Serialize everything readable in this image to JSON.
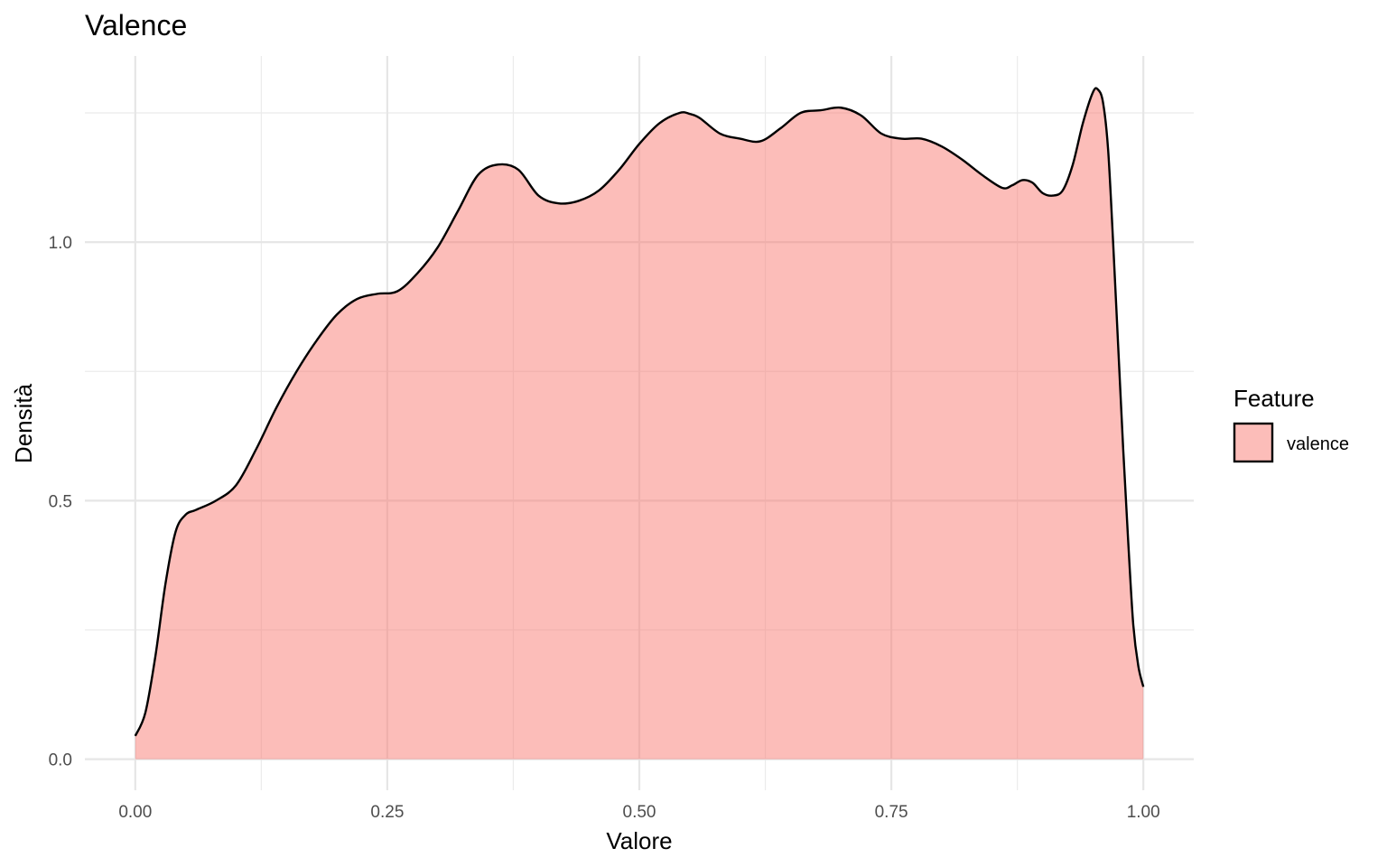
{
  "chart_data": {
    "type": "area",
    "title": "Valence",
    "xlabel": "Valore",
    "ylabel": "Densità",
    "xlim": [
      -0.05,
      1.05
    ],
    "ylim": [
      -0.06,
      1.36
    ],
    "x_ticks": [
      0.0,
      0.25,
      0.5,
      0.75,
      1.0
    ],
    "x_tick_labels": [
      "0.00",
      "0.25",
      "0.50",
      "0.75",
      "1.00"
    ],
    "y_ticks": [
      0.0,
      0.5,
      1.0
    ],
    "y_tick_labels": [
      "0.0",
      "0.5",
      "1.0"
    ],
    "grid": true,
    "legend": {
      "title": "Feature",
      "position": "right",
      "entries": [
        {
          "label": "valence",
          "color": "#f8766d"
        }
      ]
    },
    "series": [
      {
        "name": "valence",
        "fill_color": "#f8766d",
        "fill_opacity": 0.48,
        "line_color": "#000000",
        "x": [
          0.0,
          0.01,
          0.02,
          0.03,
          0.04,
          0.05,
          0.06,
          0.08,
          0.1,
          0.12,
          0.14,
          0.16,
          0.18,
          0.2,
          0.22,
          0.24,
          0.26,
          0.28,
          0.3,
          0.32,
          0.34,
          0.36,
          0.38,
          0.4,
          0.42,
          0.44,
          0.46,
          0.48,
          0.5,
          0.52,
          0.54,
          0.55,
          0.56,
          0.58,
          0.6,
          0.62,
          0.64,
          0.66,
          0.68,
          0.7,
          0.72,
          0.74,
          0.76,
          0.78,
          0.8,
          0.82,
          0.84,
          0.86,
          0.87,
          0.88,
          0.89,
          0.9,
          0.91,
          0.92,
          0.93,
          0.94,
          0.95,
          0.955,
          0.96,
          0.965,
          0.97,
          0.975,
          0.98,
          0.985,
          0.99,
          0.995,
          1.0
        ],
        "y": [
          0.045,
          0.09,
          0.2,
          0.34,
          0.44,
          0.473,
          0.482,
          0.5,
          0.53,
          0.6,
          0.68,
          0.75,
          0.81,
          0.86,
          0.89,
          0.9,
          0.905,
          0.94,
          0.99,
          1.06,
          1.13,
          1.15,
          1.14,
          1.09,
          1.075,
          1.08,
          1.1,
          1.14,
          1.19,
          1.23,
          1.25,
          1.248,
          1.24,
          1.21,
          1.2,
          1.195,
          1.22,
          1.25,
          1.255,
          1.26,
          1.245,
          1.21,
          1.2,
          1.2,
          1.185,
          1.16,
          1.13,
          1.105,
          1.11,
          1.12,
          1.115,
          1.095,
          1.09,
          1.1,
          1.15,
          1.23,
          1.29,
          1.295,
          1.27,
          1.18,
          1.0,
          0.8,
          0.6,
          0.42,
          0.26,
          0.18,
          0.14
        ]
      }
    ]
  }
}
